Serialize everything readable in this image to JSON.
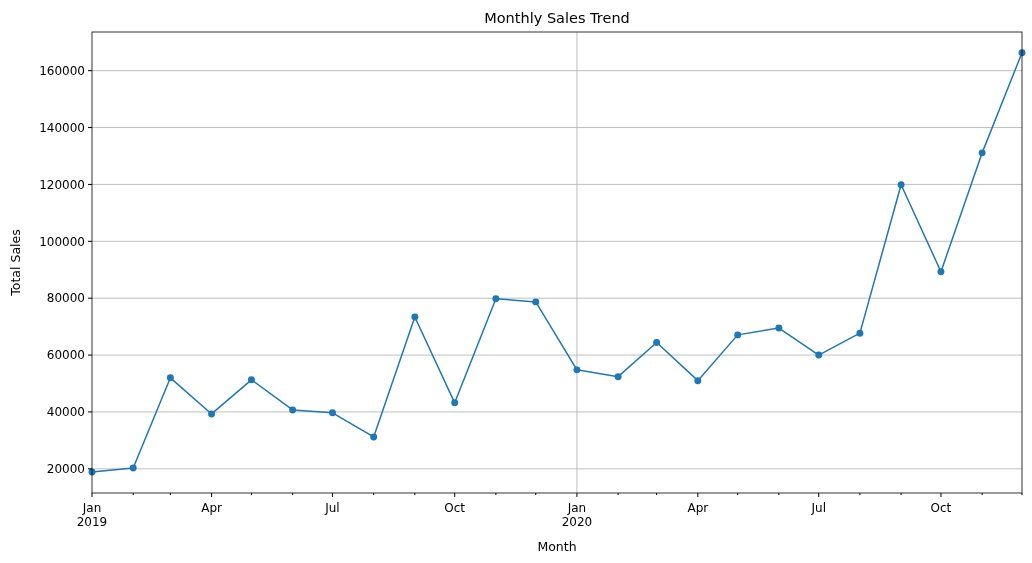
{
  "chart_data": {
    "type": "line",
    "title": "Monthly Sales Trend",
    "xlabel": "Month",
    "ylabel": "Total Sales",
    "x": [
      "2019-01",
      "2019-02",
      "2019-03",
      "2019-04",
      "2019-05",
      "2019-06",
      "2019-07",
      "2019-08",
      "2019-09",
      "2019-10",
      "2019-11",
      "2019-12",
      "2020-01",
      "2020-02",
      "2020-03",
      "2020-04",
      "2020-05",
      "2020-06",
      "2020-07",
      "2020-08",
      "2020-09",
      "2020-10",
      "2020-11",
      "2020-12"
    ],
    "series": [
      {
        "color": "#1f77b4",
        "values": [
          18900,
          20300,
          52000,
          39300,
          51300,
          40700,
          39700,
          31200,
          73400,
          43200,
          79800,
          78700,
          54800,
          52400,
          64400,
          51000,
          67100,
          69500,
          60000,
          67700,
          119900,
          89300,
          131100,
          166300
        ]
      }
    ],
    "xlim": [
      "2019-01",
      "2020-12"
    ],
    "xticks": [
      {
        "value": "2019-01",
        "label": "Jan\n2019"
      },
      {
        "value": "2019-02",
        "label": null
      },
      {
        "value": "2019-03",
        "label": null
      },
      {
        "value": "2019-04",
        "label": "Apr"
      },
      {
        "value": "2019-05",
        "label": null
      },
      {
        "value": "2019-06",
        "label": null
      },
      {
        "value": "2019-07",
        "label": "Jul"
      },
      {
        "value": "2019-08",
        "label": null
      },
      {
        "value": "2019-09",
        "label": null
      },
      {
        "value": "2019-10",
        "label": "Oct"
      },
      {
        "value": "2019-11",
        "label": null
      },
      {
        "value": "2019-12",
        "label": null
      },
      {
        "value": "2020-01",
        "label": "Jan\n2020"
      },
      {
        "value": "2020-02",
        "label": null
      },
      {
        "value": "2020-03",
        "label": null
      },
      {
        "value": "2020-04",
        "label": "Apr"
      },
      {
        "value": "2020-05",
        "label": null
      },
      {
        "value": "2020-06",
        "label": null
      },
      {
        "value": "2020-07",
        "label": "Jul"
      },
      {
        "value": "2020-08",
        "label": null
      },
      {
        "value": "2020-09",
        "label": null
      },
      {
        "value": "2020-10",
        "label": "Oct"
      },
      {
        "value": "2020-11",
        "label": null
      },
      {
        "value": "2020-12",
        "label": null
      }
    ],
    "ylim": [
      11500,
      173600
    ],
    "yticks": [
      20000,
      40000,
      60000,
      80000,
      100000,
      120000,
      140000,
      160000
    ],
    "ref_lines": [
      {
        "axis": "x",
        "value": "2020-01",
        "color": "#b0b0b0"
      }
    ],
    "grid": "y",
    "marker": "circle",
    "line_style": "solid"
  }
}
